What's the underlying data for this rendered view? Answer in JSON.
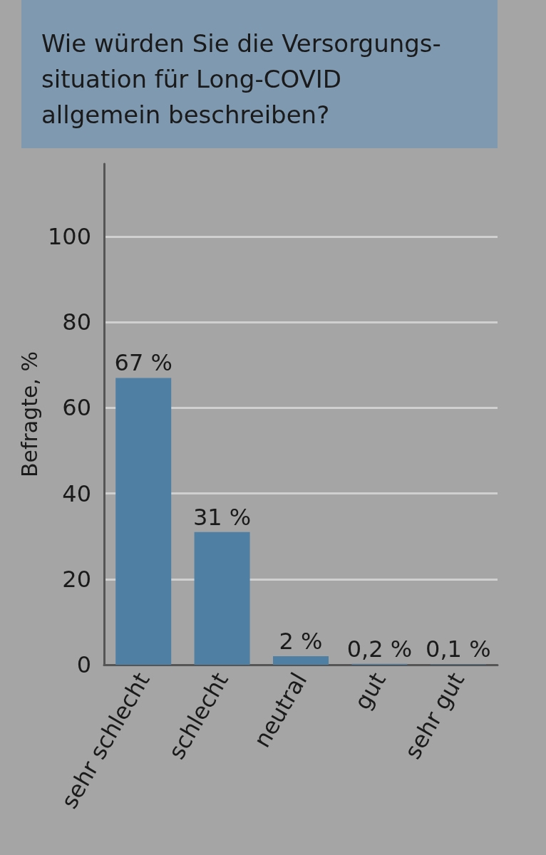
{
  "chart_data": {
    "type": "bar",
    "title": "Wie würden Sie die Versorgungs-\nsituation für Long-COVID\nallgemein beschreiben?",
    "ylabel": "Befragte, %",
    "categories": [
      "sehr schlecht",
      "schlecht",
      "neutral",
      "gut",
      "sehr gut"
    ],
    "values": [
      67,
      31,
      2,
      0.2,
      0.1
    ],
    "value_labels": [
      "67 %",
      "31 %",
      "2 %",
      "0,2 %",
      "0,1 %"
    ],
    "color": "#4f7fa3",
    "ylim": [
      0,
      117
    ],
    "yticks": [
      0,
      20,
      40,
      60,
      80,
      100
    ],
    "grid": "y"
  }
}
